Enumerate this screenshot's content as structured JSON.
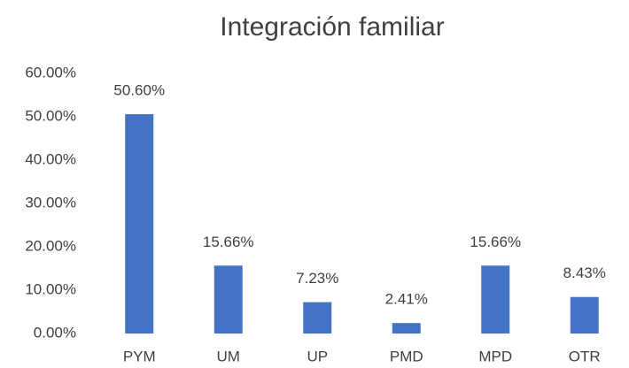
{
  "chart_data": {
    "type": "bar",
    "title": "Integración familiar",
    "categories": [
      "PYM",
      "UM",
      "UP",
      "PMD",
      "MPD",
      "OTR"
    ],
    "values": [
      50.6,
      15.66,
      7.23,
      2.41,
      15.66,
      8.43
    ],
    "value_labels": [
      "50.60%",
      "15.66%",
      "7.23%",
      "2.41%",
      "15.66%",
      "8.43%"
    ],
    "color": "#4472c4",
    "ylim": [
      0,
      60
    ],
    "yticks": [
      {
        "value": 0,
        "label": "0.00%"
      },
      {
        "value": 10,
        "label": "10.00%"
      },
      {
        "value": 20,
        "label": "20.00%"
      },
      {
        "value": 30,
        "label": "30.00%"
      },
      {
        "value": 40,
        "label": "40.00%"
      },
      {
        "value": 50,
        "label": "50.00%"
      },
      {
        "value": 60,
        "label": "60.00%"
      }
    ]
  }
}
